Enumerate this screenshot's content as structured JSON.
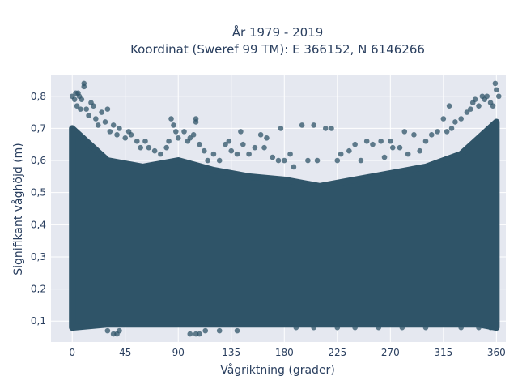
{
  "chart_data": {
    "type": "scatter",
    "title": "År 1979 - 2019",
    "subtitle": "Koordinat (Sweref 99 TM): E 366152, N 6146266",
    "xlabel": "Vågriktning (grader)",
    "ylabel": "Signifikant våghöjd (m)",
    "xlim": [
      -18,
      368
    ],
    "ylim": [
      0.035,
      0.865
    ],
    "xticks": [
      0,
      45,
      90,
      135,
      180,
      225,
      270,
      315,
      360
    ],
    "xtick_labels": [
      "0",
      "45",
      "90",
      "135",
      "180",
      "225",
      "270",
      "315",
      "360"
    ],
    "yticks": [
      0.1,
      0.2,
      0.3,
      0.4,
      0.5,
      0.6,
      0.7,
      0.8
    ],
    "ytick_labels": [
      "0,1",
      "0,2",
      "0,3",
      "0,4",
      "0,5",
      "0,6",
      "0,7",
      "0,8"
    ],
    "grid": true,
    "marker_color": "#2f5468",
    "background_color": "#e5e8f0",
    "dense_band": {
      "x": [
        0,
        30,
        60,
        90,
        120,
        150,
        180,
        210,
        240,
        270,
        300,
        330,
        345,
        360
      ],
      "y_min": [
        0.08,
        0.09,
        0.09,
        0.09,
        0.09,
        0.09,
        0.09,
        0.09,
        0.09,
        0.09,
        0.09,
        0.09,
        0.09,
        0.08
      ],
      "y_max": [
        0.7,
        0.6,
        0.58,
        0.6,
        0.57,
        0.55,
        0.54,
        0.52,
        0.54,
        0.56,
        0.58,
        0.62,
        0.67,
        0.72
      ]
    },
    "points": [
      [
        0,
        0.8
      ],
      [
        2,
        0.79
      ],
      [
        3,
        0.81
      ],
      [
        5,
        0.81
      ],
      [
        6,
        0.8
      ],
      [
        8,
        0.79
      ],
      [
        10,
        0.84
      ],
      [
        10,
        0.83
      ],
      [
        4,
        0.77
      ],
      [
        7,
        0.76
      ],
      [
        12,
        0.76
      ],
      [
        14,
        0.74
      ],
      [
        16,
        0.78
      ],
      [
        18,
        0.77
      ],
      [
        20,
        0.73
      ],
      [
        22,
        0.71
      ],
      [
        25,
        0.75
      ],
      [
        28,
        0.72
      ],
      [
        30,
        0.76
      ],
      [
        32,
        0.69
      ],
      [
        35,
        0.71
      ],
      [
        38,
        0.68
      ],
      [
        40,
        0.7
      ],
      [
        45,
        0.67
      ],
      [
        48,
        0.69
      ],
      [
        50,
        0.68
      ],
      [
        55,
        0.66
      ],
      [
        58,
        0.64
      ],
      [
        62,
        0.66
      ],
      [
        65,
        0.64
      ],
      [
        70,
        0.63
      ],
      [
        75,
        0.62
      ],
      [
        80,
        0.64
      ],
      [
        82,
        0.66
      ],
      [
        84,
        0.73
      ],
      [
        86,
        0.71
      ],
      [
        88,
        0.69
      ],
      [
        90,
        0.67
      ],
      [
        95,
        0.69
      ],
      [
        98,
        0.66
      ],
      [
        100,
        0.67
      ],
      [
        103,
        0.68
      ],
      [
        105,
        0.73
      ],
      [
        105,
        0.72
      ],
      [
        108,
        0.65
      ],
      [
        112,
        0.63
      ],
      [
        115,
        0.6
      ],
      [
        120,
        0.62
      ],
      [
        125,
        0.6
      ],
      [
        130,
        0.65
      ],
      [
        133,
        0.66
      ],
      [
        135,
        0.63
      ],
      [
        140,
        0.62
      ],
      [
        143,
        0.69
      ],
      [
        145,
        0.65
      ],
      [
        150,
        0.62
      ],
      [
        155,
        0.64
      ],
      [
        160,
        0.68
      ],
      [
        163,
        0.64
      ],
      [
        165,
        0.67
      ],
      [
        170,
        0.61
      ],
      [
        175,
        0.6
      ],
      [
        177,
        0.7
      ],
      [
        180,
        0.6
      ],
      [
        185,
        0.62
      ],
      [
        188,
        0.58
      ],
      [
        195,
        0.71
      ],
      [
        200,
        0.6
      ],
      [
        205,
        0.71
      ],
      [
        208,
        0.6
      ],
      [
        215,
        0.7
      ],
      [
        220,
        0.7
      ],
      [
        225,
        0.6
      ],
      [
        228,
        0.62
      ],
      [
        235,
        0.63
      ],
      [
        240,
        0.65
      ],
      [
        245,
        0.6
      ],
      [
        250,
        0.66
      ],
      [
        255,
        0.65
      ],
      [
        262,
        0.66
      ],
      [
        265,
        0.61
      ],
      [
        270,
        0.66
      ],
      [
        272,
        0.64
      ],
      [
        278,
        0.64
      ],
      [
        282,
        0.69
      ],
      [
        285,
        0.62
      ],
      [
        290,
        0.68
      ],
      [
        295,
        0.63
      ],
      [
        300,
        0.66
      ],
      [
        305,
        0.68
      ],
      [
        310,
        0.69
      ],
      [
        315,
        0.73
      ],
      [
        318,
        0.69
      ],
      [
        320,
        0.77
      ],
      [
        322,
        0.7
      ],
      [
        325,
        0.72
      ],
      [
        330,
        0.73
      ],
      [
        335,
        0.75
      ],
      [
        338,
        0.76
      ],
      [
        340,
        0.78
      ],
      [
        342,
        0.79
      ],
      [
        345,
        0.77
      ],
      [
        348,
        0.8
      ],
      [
        350,
        0.79
      ],
      [
        352,
        0.8
      ],
      [
        355,
        0.78
      ],
      [
        357,
        0.77
      ],
      [
        359,
        0.84
      ],
      [
        360,
        0.82
      ],
      [
        362,
        0.8
      ],
      [
        30,
        0.07
      ],
      [
        35,
        0.06
      ],
      [
        38,
        0.06
      ],
      [
        40,
        0.07
      ],
      [
        100,
        0.06
      ],
      [
        105,
        0.06
      ],
      [
        108,
        0.06
      ],
      [
        113,
        0.07
      ],
      [
        125,
        0.07
      ],
      [
        140,
        0.07
      ],
      [
        190,
        0.08
      ],
      [
        205,
        0.08
      ],
      [
        225,
        0.08
      ],
      [
        240,
        0.08
      ],
      [
        260,
        0.08
      ],
      [
        280,
        0.08
      ],
      [
        300,
        0.08
      ],
      [
        330,
        0.08
      ],
      [
        345,
        0.08
      ],
      [
        355,
        0.08
      ]
    ]
  }
}
